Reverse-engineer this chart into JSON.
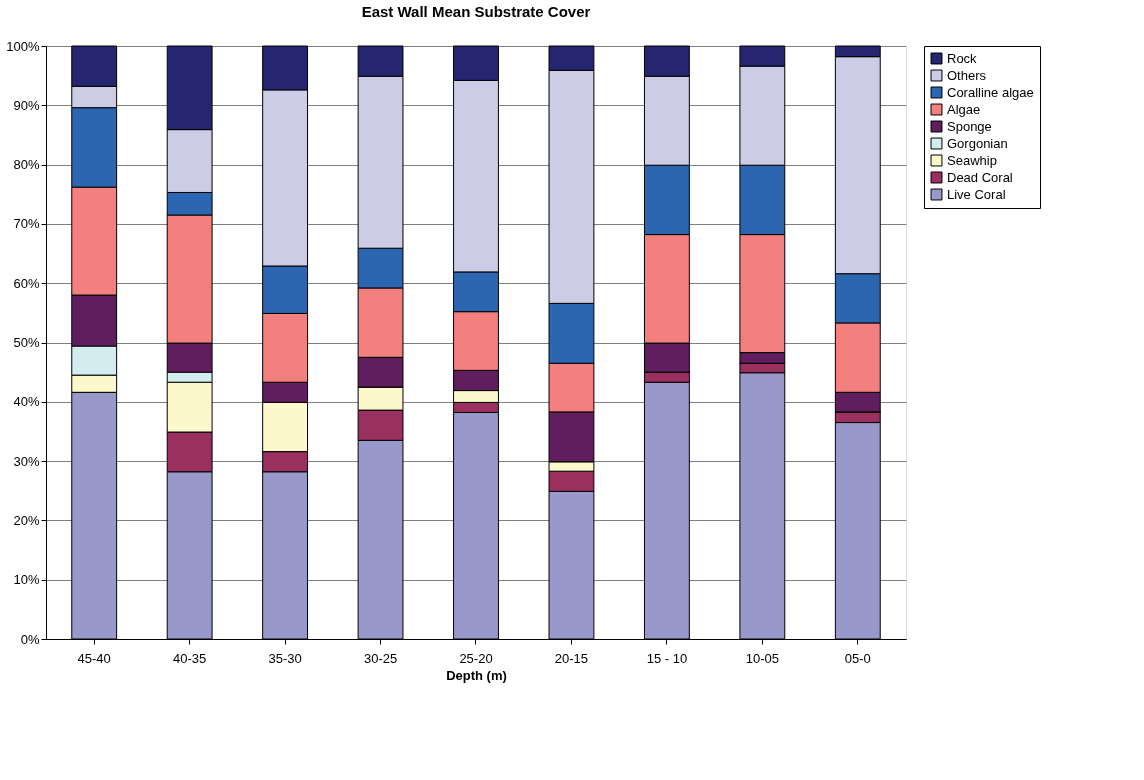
{
  "chart_data": {
    "type": "bar",
    "stacked": true,
    "title": "East Wall Mean Substrate Cover",
    "xlabel": "Depth (m)",
    "categories": [
      "45-40",
      "40-35",
      "35-30",
      "30-25",
      "25-20",
      "20-15",
      "15 - 10",
      "10-05",
      "05-0"
    ],
    "series": [
      {
        "name": "Live Coral",
        "color": "#9898ca",
        "values": [
          41.6,
          28.2,
          28.2,
          33.5,
          38.2,
          24.9,
          43.3,
          44.9,
          36.5
        ]
      },
      {
        "name": "Dead Coral",
        "color": "#993060",
        "values": [
          0,
          6.7,
          3.4,
          5.1,
          1.7,
          3.4,
          1.7,
          1.6,
          1.8
        ]
      },
      {
        "name": "Seawhip",
        "color": "#fcf8cc",
        "values": [
          2.9,
          8.4,
          8.3,
          3.9,
          2.0,
          1.6,
          0,
          0,
          0
        ]
      },
      {
        "name": "Gorgonian",
        "color": "#d2ecf0",
        "values": [
          4.9,
          1.7,
          0,
          0,
          0,
          0,
          0,
          0,
          0
        ]
      },
      {
        "name": "Sponge",
        "color": "#601e5e",
        "values": [
          8.6,
          4.9,
          3.4,
          5.0,
          3.4,
          8.4,
          4.9,
          1.8,
          3.3
        ]
      },
      {
        "name": "Algae",
        "color": "#f47f7f",
        "values": [
          18.2,
          21.6,
          11.6,
          11.7,
          9.9,
          8.2,
          18.3,
          19.9,
          11.7
        ]
      },
      {
        "name": "Coralline algae",
        "color": "#2c66b0",
        "values": [
          13.4,
          3.8,
          8.0,
          6.7,
          6.7,
          10.1,
          11.7,
          11.7,
          8.3
        ]
      },
      {
        "name": "Others",
        "color": "#cccce6",
        "values": [
          3.6,
          10.6,
          29.7,
          29.0,
          32.3,
          39.3,
          15.0,
          16.7,
          36.6
        ]
      },
      {
        "name": "Rock",
        "color": "#262670",
        "values": [
          6.8,
          14.1,
          7.4,
          5.1,
          5.8,
          4.1,
          5.1,
          3.4,
          1.8
        ]
      }
    ],
    "ylim": [
      0,
      100
    ],
    "yticks": [
      {
        "value": 0,
        "label": "0%"
      },
      {
        "value": 10,
        "label": "10%"
      },
      {
        "value": 20,
        "label": "20%"
      },
      {
        "value": 30,
        "label": "30%"
      },
      {
        "value": 40,
        "label": "40%"
      },
      {
        "value": 50,
        "label": "50%"
      },
      {
        "value": 60,
        "label": "60%"
      },
      {
        "value": 70,
        "label": "70%"
      },
      {
        "value": 80,
        "label": "80%"
      },
      {
        "value": 90,
        "label": "90%"
      },
      {
        "value": 100,
        "label": "100%"
      }
    ],
    "grid": "y",
    "legend": "right"
  }
}
